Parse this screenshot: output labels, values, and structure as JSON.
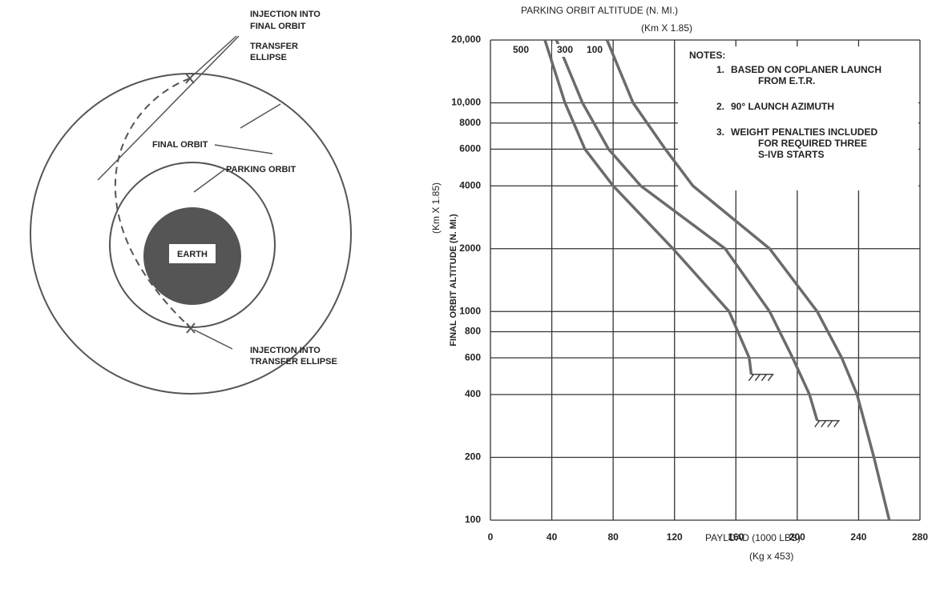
{
  "diagram": {
    "injection_final": [
      "INJECTION INTO",
      "FINAL ORBIT"
    ],
    "transfer_ellipse": [
      "TRANSFER",
      "ELLIPSE"
    ],
    "final_orbit": "FINAL ORBIT",
    "parking_orbit": "PARKING ORBIT",
    "earth": "EARTH",
    "injection_transfer": [
      "INJECTION INTO",
      "TRANSFER ELLIPSE"
    ]
  },
  "chart_data": {
    "type": "line",
    "title": "PARKING ORBIT ALTITUDE (N. MI.)",
    "title_unit": "(Km X 1.85)",
    "x_label": "PAYLOAD (1000 LBS)",
    "x_unit": "(Kg x 453)",
    "y_label": "FINAL ORBIT ALTITUDE (N. MI.)",
    "y_unit": "(Km X 1.85)",
    "notes": {
      "heading": "NOTES:",
      "items": [
        [
          "1.",
          "BASED ON COPLANER LAUNCH",
          "FROM E.T.R."
        ],
        [
          "2.",
          "90° LAUNCH AZIMUTH"
        ],
        [
          "3.",
          "WEIGHT PENALTIES INCLUDED",
          "FOR REQUIRED THREE",
          "S-IVB STARTS"
        ]
      ]
    },
    "yscale": "log",
    "grid": true,
    "color": "#6b6b6b",
    "xlim": [
      0,
      280
    ],
    "xticks": [
      0,
      40,
      80,
      120,
      160,
      200,
      240,
      280
    ],
    "ylim": [
      100,
      20000
    ],
    "yticks": [
      100,
      200,
      400,
      600,
      800,
      1000,
      2000,
      4000,
      6000,
      8000,
      {
        "value": 10000,
        "label": "10,000"
      },
      {
        "value": 20000,
        "label": "20,000"
      }
    ],
    "series": [
      {
        "name": "500",
        "x": [
          35.5,
          48.6,
          61.6,
          80,
          119,
          155.6,
          168.7,
          170
        ],
        "values": [
          20000,
          10000,
          6000,
          4000,
          2000,
          1000,
          600,
          500
        ]
      },
      {
        "name": "300",
        "x": [
          43,
          60,
          77,
          98,
          153,
          182,
          197,
          208,
          213
        ],
        "values": [
          20000,
          10000,
          6000,
          4000,
          2000,
          1000,
          600,
          400,
          300
        ]
      },
      {
        "name": "100",
        "x": [
          76,
          93,
          114,
          132,
          182,
          213,
          229,
          239,
          250,
          260
        ],
        "values": [
          20000,
          10000,
          6000,
          4000,
          2000,
          1000,
          600,
          400,
          200,
          100
        ]
      }
    ]
  }
}
